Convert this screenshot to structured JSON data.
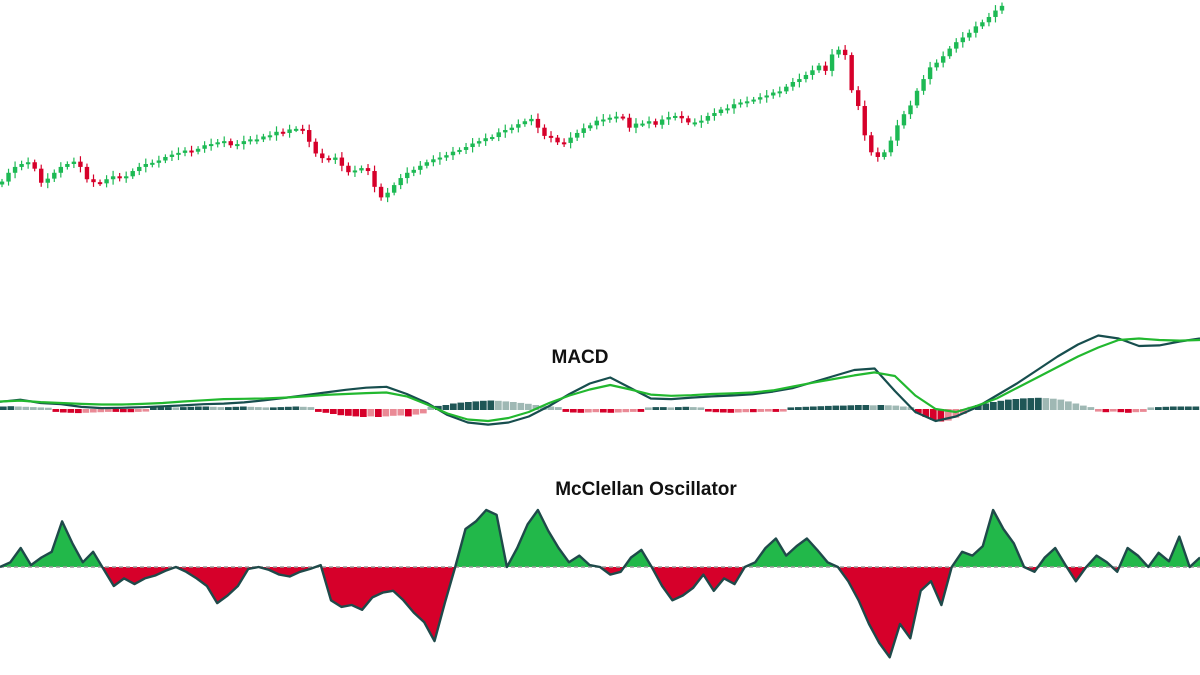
{
  "colors": {
    "up": "#1db954",
    "down": "#d6002a",
    "macd_line": "#174e4e",
    "signal_line": "#22b82f",
    "hist_pos_strong": "#1f5656",
    "hist_pos_weak": "#9fb8b4",
    "hist_neg_strong": "#d6002a",
    "hist_neg_weak": "#ea8a96",
    "osc_pos_fill": "#22b84a",
    "osc_neg_fill": "#d6002a",
    "osc_line": "#1f4a4a",
    "zero_line": "#9a9a9a"
  },
  "panels": {
    "macd_title": "MACD",
    "osc_title": "McClellan Oscillator"
  },
  "chart_data": [
    {
      "type": "candlestick",
      "title": "",
      "grid": false,
      "closes": [
        100,
        101.5,
        102.5,
        103,
        103.3,
        102.2,
        99.8,
        100.5,
        101.5,
        102.5,
        103,
        103.4,
        102.5,
        100.4,
        99.9,
        99.7,
        100.4,
        100.9,
        100.6,
        100.9,
        101.8,
        102.5,
        103,
        103.2,
        103.6,
        104.2,
        104.6,
        104.9,
        105.3,
        105.1,
        105.6,
        106.2,
        106.4,
        106.7,
        106.9,
        106.2,
        106.4,
        106.9,
        107.2,
        107.2,
        107.7,
        107.9,
        108.5,
        108.3,
        108.9,
        109,
        108.8,
        106.8,
        104.8,
        104,
        103.7,
        104.1,
        102.7,
        101.6,
        101.9,
        102.3,
        101.8,
        99.1,
        97.3,
        98.1,
        99.4,
        100.6,
        101.5,
        102,
        102.7,
        103.3,
        103.8,
        104.1,
        104.5,
        105.1,
        105.4,
        105.9,
        106.5,
        106.9,
        107.4,
        107.6,
        108.4,
        108.8,
        109.2,
        109.8,
        110.3,
        110.7,
        109.2,
        107.8,
        107.5,
        106.7,
        106.6,
        107.5,
        108.3,
        109.1,
        109.6,
        110.4,
        110.6,
        110.9,
        111.1,
        110.9,
        109.2,
        109.9,
        109.9,
        110.3,
        109.7,
        110.6,
        111,
        111.2,
        110.8,
        110.1,
        110.1,
        110.4,
        111.2,
        111.7,
        112.3,
        112.5,
        113.2,
        113.5,
        113.7,
        114,
        114.4,
        114.7,
        115.2,
        115.4,
        116.2,
        117,
        117.5,
        118.2,
        119,
        119.8,
        118.9,
        121.7,
        122.5,
        121.6,
        115.6,
        112.9,
        107.9,
        105,
        104.2,
        105,
        107,
        109.6,
        111.5,
        113,
        115.5,
        117.5,
        119.5,
        120.3,
        121.4,
        122.7,
        123.8,
        124.6,
        125.4,
        126.5,
        127.2,
        128.1,
        129.2,
        130
      ]
    },
    {
      "type": "line",
      "title": "MACD",
      "grid": false,
      "series": [
        {
          "values": [
            0.24,
            0.31,
            0.2,
            0.16,
            0.07,
            0.03,
            0.04,
            0.06,
            0.09,
            0.12,
            0.16,
            0.18,
            0.22,
            0.29,
            0.37,
            0.46,
            0.55,
            0.64,
            0.71,
            0.74,
            0.5,
            0.2,
            -0.2,
            -0.45,
            -0.52,
            -0.45,
            -0.25,
            0.1,
            0.5,
            0.85,
            1.05,
            0.7,
            0.35,
            0.33,
            0.38,
            0.42,
            0.45,
            0.49,
            0.58,
            0.7,
            0.9,
            1.1,
            1.3,
            1.35,
            0.6,
            -0.1,
            -0.4,
            -0.25,
            0.05,
            0.45,
            0.85,
            1.3,
            1.75,
            2.15,
            2.45,
            2.35,
            2.1,
            2.12,
            2.25,
            2.35
          ]
        },
        {
          "values": [
            0.25,
            0.28,
            0.23,
            0.2,
            0.17,
            0.15,
            0.15,
            0.17,
            0.2,
            0.25,
            0.29,
            0.33,
            0.34,
            0.35,
            0.38,
            0.42,
            0.47,
            0.5,
            0.53,
            0.55,
            0.42,
            0.15,
            -0.15,
            -0.35,
            -0.4,
            -0.3,
            -0.1,
            0.2,
            0.45,
            0.65,
            0.8,
            0.65,
            0.48,
            0.44,
            0.46,
            0.5,
            0.52,
            0.55,
            0.62,
            0.75,
            0.88,
            1.0,
            1.12,
            1.22,
            1.1,
            0.45,
            0.0,
            -0.1,
            0.1,
            0.35,
            0.7,
            1.05,
            1.4,
            1.75,
            2.05,
            2.3,
            2.35,
            2.3,
            2.28,
            2.3
          ]
        }
      ],
      "histogram": [
        0.05,
        0.06,
        0.05,
        0.04,
        0.03,
        0.02,
        0.01,
        -0.03,
        -0.05,
        -0.06,
        -0.07,
        -0.06,
        -0.05,
        -0.04,
        -0.03,
        -0.03,
        -0.04,
        -0.04,
        -0.03,
        -0.02,
        0.02,
        0.03,
        0.03,
        0.02,
        0.03,
        0.04,
        0.05,
        0.05,
        0.04,
        0.03,
        0.03,
        0.04,
        0.05,
        0.04,
        0.03,
        0.02,
        0.02,
        0.03,
        0.04,
        0.05,
        0.04,
        0.03,
        -0.03,
        -0.06,
        -0.1,
        -0.14,
        -0.16,
        -0.18,
        -0.2,
        -0.18,
        -0.2,
        -0.18,
        -0.16,
        -0.15,
        -0.18,
        -0.12,
        -0.08,
        0.04,
        0.07,
        0.1,
        0.15,
        0.18,
        0.2,
        0.22,
        0.24,
        0.25,
        0.24,
        0.22,
        0.2,
        0.17,
        0.14,
        0.1,
        0.07,
        0.05,
        0.03,
        -0.03,
        -0.05,
        -0.06,
        -0.05,
        -0.04,
        -0.05,
        -0.06,
        -0.05,
        -0.04,
        -0.03,
        -0.03,
        0.02,
        0.03,
        0.03,
        0.02,
        0.03,
        0.04,
        0.03,
        0.02,
        -0.02,
        -0.04,
        -0.05,
        -0.06,
        -0.05,
        -0.04,
        -0.04,
        -0.03,
        -0.02,
        -0.03,
        -0.02,
        0.02,
        0.03,
        0.04,
        0.05,
        0.06,
        0.07,
        0.08,
        0.08,
        0.09,
        0.1,
        0.1,
        0.09,
        0.1,
        0.09,
        0.08,
        0.05,
        0.03,
        -0.08,
        -0.2,
        -0.3,
        -0.35,
        -0.32,
        -0.22,
        -0.1,
        0.04,
        0.1,
        0.15,
        0.2,
        0.24,
        0.28,
        0.3,
        0.32,
        0.33,
        0.34,
        0.33,
        0.31,
        0.28,
        0.22,
        0.15,
        0.08,
        0.03,
        -0.02,
        -0.04,
        -0.02,
        -0.04,
        -0.06,
        -0.04,
        -0.03,
        0.02,
        0.03,
        0.04,
        0.05,
        0.05,
        0.05,
        0.05
      ]
    },
    {
      "type": "area",
      "title": "McClellan Oscillator",
      "grid": false,
      "values": [
        0,
        5,
        20,
        2,
        10,
        16,
        48,
        25,
        5,
        16,
        -2,
        -20,
        -12,
        -18,
        -12,
        -9,
        -4,
        0,
        -5,
        -12,
        -20,
        -38,
        -30,
        -20,
        -2,
        0,
        -3,
        -8,
        -10,
        -5,
        -2,
        2,
        -35,
        -42,
        -40,
        -45,
        -32,
        -27,
        -25,
        -35,
        -48,
        -58,
        -78,
        -38,
        0,
        40,
        48,
        60,
        55,
        0,
        20,
        45,
        60,
        38,
        20,
        5,
        12,
        2,
        0,
        -8,
        -5,
        10,
        18,
        0,
        -20,
        -35,
        -30,
        -22,
        -8,
        -25,
        -12,
        -18,
        0,
        5,
        20,
        30,
        12,
        22,
        30,
        18,
        5,
        0,
        -15,
        -35,
        -60,
        -80,
        -95,
        -60,
        -75,
        -25,
        -15,
        -40,
        0,
        16,
        12,
        22,
        60,
        40,
        25,
        0,
        -5,
        10,
        20,
        2,
        -15,
        0,
        12,
        5,
        -5,
        20,
        12,
        0,
        15,
        6,
        32,
        0,
        10
      ]
    }
  ]
}
